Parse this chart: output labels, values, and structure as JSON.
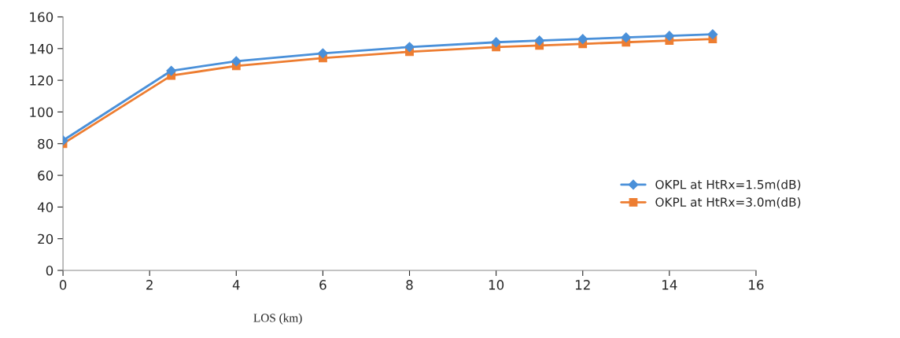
{
  "chart_data": {
    "type": "line",
    "xlabel": "LOS (km)",
    "x": [
      0,
      2.5,
      4,
      6,
      8,
      10,
      11,
      12,
      13,
      14,
      15
    ],
    "series": [
      {
        "name": "OKPL at HtRx=1.5m(dB)",
        "color": "#4a90d9",
        "marker": "diamond",
        "values": [
          82,
          126,
          132,
          137,
          141,
          144,
          145,
          146,
          147,
          148,
          149
        ]
      },
      {
        "name": "OKPL at HtRx=3.0m(dB)",
        "color": "#ed7d31",
        "marker": "square",
        "values": [
          80,
          123,
          129,
          134,
          138,
          141,
          142,
          143,
          144,
          145,
          146
        ]
      }
    ],
    "xlim": [
      0,
      16
    ],
    "xticks": [
      0,
      2,
      4,
      6,
      8,
      10,
      12,
      14,
      16
    ],
    "ylim": [
      0,
      160
    ],
    "yticks": [
      0,
      20,
      40,
      60,
      80,
      100,
      120,
      140,
      160
    ],
    "grid": false,
    "legend": "right",
    "line_style": "solid"
  }
}
